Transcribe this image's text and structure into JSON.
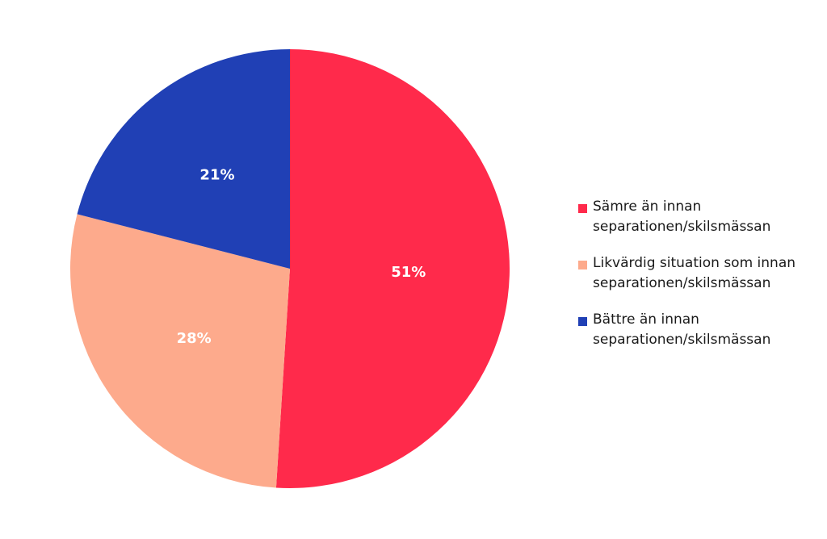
{
  "chart_data": {
    "type": "pie",
    "title": "",
    "legend_position": "right",
    "start_angle_deg": 0,
    "direction": "clockwise",
    "slices": [
      {
        "label": "Sämre än innan separationen/skilsmässan",
        "value": 51,
        "value_label": "51%",
        "color": "#FF2A4B"
      },
      {
        "label": "Likvärdig situation som innan separationen/skilsmässan",
        "value": 28,
        "value_label": "28%",
        "color": "#FDAA8C"
      },
      {
        "label": "Bättre än innan separationen/skilsmässan",
        "value": 21,
        "value_label": "21%",
        "color": "#2040B5"
      }
    ]
  }
}
